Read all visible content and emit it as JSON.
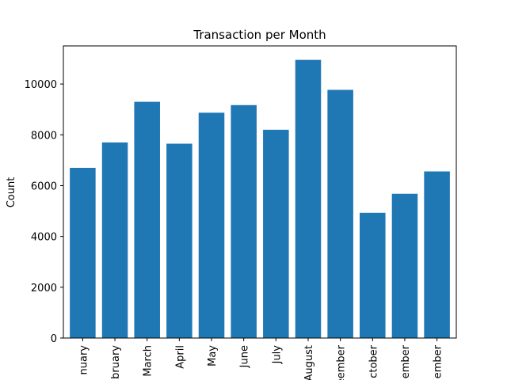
{
  "chart_data": {
    "type": "bar",
    "title": "Transaction per Month",
    "xlabel": "",
    "ylabel": "Count",
    "categories": [
      "January",
      "February",
      "March",
      "April",
      "May",
      "June",
      "July",
      "August",
      "September",
      "October",
      "November",
      "December"
    ],
    "visible_tick_labels": [
      "nuary",
      "bruary",
      "March",
      "April",
      "May",
      "June",
      "July",
      "August",
      "eember",
      "ctober",
      "ember",
      "ember"
    ],
    "values": [
      6700,
      7700,
      9300,
      7650,
      8870,
      9170,
      8200,
      10950,
      9770,
      4930,
      5680,
      6560
    ],
    "ylim": [
      0,
      11500
    ],
    "yticks": [
      0,
      2000,
      4000,
      6000,
      8000,
      10000
    ],
    "bar_color": "#1f77b4",
    "grid": false,
    "legend": "none"
  }
}
